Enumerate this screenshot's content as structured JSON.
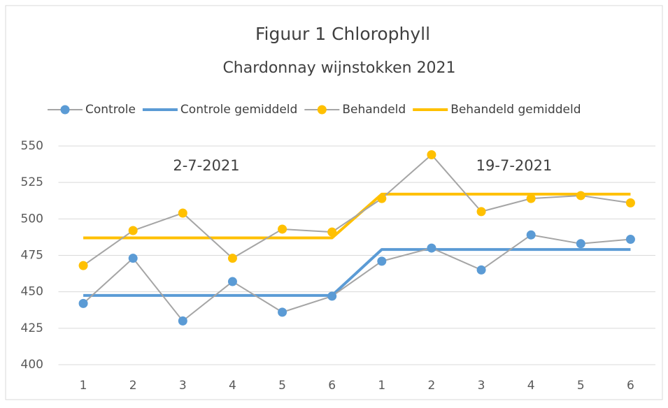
{
  "chart_data": {
    "type": "line",
    "title": "Figuur 1  Chlorophyll",
    "subtitle": "Chardonnay wijnstokken 2021",
    "annotations": [
      "2-7-2021",
      "19-7-2021"
    ],
    "categories": [
      "1",
      "2",
      "3",
      "4",
      "5",
      "6",
      "1",
      "2",
      "3",
      "4",
      "5",
      "6"
    ],
    "series": [
      {
        "name": "Controle",
        "color": "#5b9bd5",
        "line_color": "#a5a5a5",
        "markers": true,
        "values": [
          442,
          473,
          430,
          457,
          436,
          447,
          471,
          480,
          465,
          489,
          483,
          486
        ]
      },
      {
        "name": "Controle gemiddeld",
        "color": "#5b9bd5",
        "markers": false,
        "values": [
          447.5,
          447.5,
          447.5,
          447.5,
          447.5,
          447.5,
          479,
          479,
          479,
          479,
          479,
          479
        ]
      },
      {
        "name": "Behandeld",
        "color": "#ffc000",
        "line_color": "#a5a5a5",
        "markers": true,
        "values": [
          468,
          492,
          504,
          473,
          493,
          491,
          514,
          544,
          505,
          514,
          516,
          511
        ]
      },
      {
        "name": "Behandeld gemiddeld",
        "color": "#ffc000",
        "markers": false,
        "values": [
          487,
          487,
          487,
          487,
          487,
          487,
          517,
          517,
          517,
          517,
          517,
          517
        ]
      }
    ],
    "ylim": [
      400,
      550
    ],
    "yticks": [
      400,
      425,
      450,
      475,
      500,
      525,
      550
    ],
    "grid": true,
    "legend": "top"
  }
}
